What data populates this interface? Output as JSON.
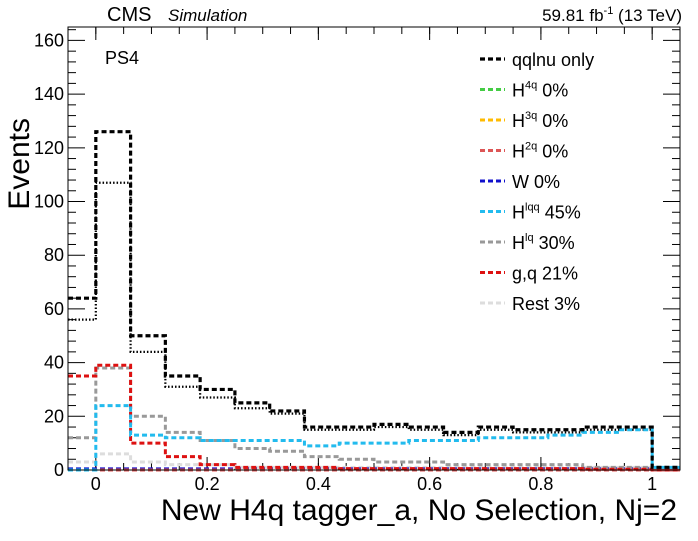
{
  "header": {
    "experiment": "CMS",
    "status": "Simulation",
    "lumi": "59.81 fb",
    "lumi_exp": "-1",
    "energy": " (13 TeV)"
  },
  "chart_data": {
    "type": "step",
    "region_label": "PS4",
    "xlabel": "New H4q tagger_a, No Selection, Nj=2",
    "ylabel": "Events",
    "xlim": [
      -0.05,
      1.05
    ],
    "ylim": [
      0,
      165
    ],
    "x_ticks": [
      0,
      0.2,
      0.4,
      0.6,
      0.8,
      1
    ],
    "x_tick_labels": [
      "0",
      "0.2",
      "0.4",
      "0.6",
      "0.8",
      "1"
    ],
    "y_ticks": [
      0,
      20,
      40,
      60,
      80,
      100,
      120,
      140,
      160
    ],
    "y_tick_labels": [
      "0",
      "20",
      "40",
      "60",
      "80",
      "100",
      "120",
      "140",
      "160"
    ],
    "bin_edges": [
      -0.05,
      0.0,
      0.0625,
      0.125,
      0.1875,
      0.25,
      0.3125,
      0.375,
      0.4375,
      0.5,
      0.5625,
      0.625,
      0.6875,
      0.75,
      0.8125,
      0.875,
      0.9375,
      1.0,
      1.05
    ],
    "legend_position": "top-right",
    "series": [
      {
        "key": "total",
        "label": "qqlnu only",
        "sup": "",
        "suffix": "",
        "color": "#000000",
        "dash": "5,3",
        "width": 3.2,
        "values": [
          64,
          126,
          50,
          35,
          30,
          25,
          22,
          16,
          16,
          17,
          16,
          14,
          16,
          15,
          15,
          16,
          16,
          1
        ]
      },
      {
        "key": "h4q",
        "label": "H",
        "sup": "4q",
        "suffix": "  0%",
        "color": "#44cc44",
        "dash": "5,3",
        "width": 3,
        "values": [
          0,
          0,
          0,
          0,
          0,
          0,
          0,
          0,
          0,
          0,
          0,
          0,
          0,
          0,
          0,
          0,
          0,
          0
        ]
      },
      {
        "key": "h3q",
        "label": "H",
        "sup": "3q",
        "suffix": "  0%",
        "color": "#ffbb00",
        "dash": "5,3",
        "width": 3,
        "values": [
          0,
          0,
          0,
          0,
          0,
          0,
          0,
          0,
          0,
          0,
          0,
          0,
          0,
          0,
          0,
          0,
          0,
          0
        ]
      },
      {
        "key": "h2q",
        "label": "H",
        "sup": "2q",
        "suffix": "  0%",
        "color": "#dd5555",
        "dash": "5,3",
        "width": 3,
        "values": [
          0,
          0,
          0,
          0,
          0,
          0,
          0,
          0,
          0,
          0,
          0,
          0,
          0,
          0,
          0,
          0,
          0,
          0
        ]
      },
      {
        "key": "w",
        "label": "W",
        "sup": "",
        "suffix": "      0%",
        "color": "#1010cc",
        "dash": "5,3",
        "width": 3,
        "values": [
          0.4,
          0.4,
          0.4,
          0.4,
          0.4,
          0.4,
          0.4,
          0.4,
          0.4,
          0.4,
          0.4,
          0.4,
          0.4,
          0.4,
          0.4,
          0.4,
          0.4,
          0.4
        ]
      },
      {
        "key": "hlqq",
        "label": "H",
        "sup": "lqq",
        "suffix": " 45%",
        "color": "#22bbee",
        "dash": "5,3",
        "width": 3,
        "values": [
          0,
          24,
          13,
          12,
          11,
          11,
          11,
          9,
          10,
          10,
          11,
          11,
          12,
          12,
          13,
          14,
          15,
          1
        ]
      },
      {
        "key": "hlq",
        "label": "H",
        "sup": "lq",
        "suffix": "  30%",
        "color": "#999999",
        "dash": "5,3",
        "width": 3,
        "values": [
          12,
          38,
          20,
          14,
          11,
          8,
          7,
          5,
          4,
          3,
          3,
          2,
          2,
          2,
          2,
          1,
          1,
          0
        ]
      },
      {
        "key": "gq",
        "label": "g,q",
        "sup": "",
        "suffix": "      21%",
        "color": "#dd1111",
        "dash": "5,3",
        "width": 3,
        "values": [
          35,
          39,
          10,
          5,
          2,
          1,
          1,
          1,
          0.5,
          0.5,
          0.5,
          0.5,
          0.5,
          0.5,
          0.5,
          0.3,
          0.3,
          0
        ]
      },
      {
        "key": "rest",
        "label": "Rest",
        "sup": "",
        "suffix": "   3%",
        "color": "#dddddd",
        "dash": "5,3",
        "width": 3,
        "values": [
          3,
          6,
          3,
          2,
          2,
          1,
          1,
          1,
          1,
          1,
          1,
          1,
          1,
          1,
          1,
          1,
          1,
          0
        ]
      }
    ],
    "extra_lines": [
      {
        "name": "dotted-overlay",
        "color": "#000000",
        "dash": "1.5,2",
        "width": 2.2,
        "values": [
          56,
          107,
          44,
          31,
          27,
          23,
          21,
          15,
          15,
          16,
          15,
          13,
          15,
          14,
          14,
          15,
          15,
          1
        ]
      }
    ]
  }
}
